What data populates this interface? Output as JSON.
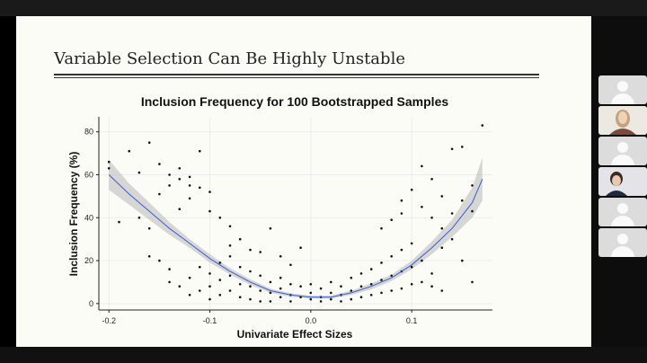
{
  "slide": {
    "title": "Variable Selection Can Be Highly Unstable"
  },
  "participants": [
    {
      "type": "avatar",
      "icon": "person-avatar-icon"
    },
    {
      "type": "camera",
      "icon": "video-feed-icon"
    },
    {
      "type": "avatar",
      "icon": "person-avatar-icon"
    },
    {
      "type": "camera",
      "icon": "video-feed-icon"
    },
    {
      "type": "avatar",
      "icon": "person-avatar-icon"
    },
    {
      "type": "avatar",
      "icon": "person-avatar-icon"
    }
  ],
  "chart_data": {
    "type": "scatter",
    "title": "Inclusion Frequency for 100 Bootstrapped Samples",
    "xlabel": "Univariate Effect Sizes",
    "ylabel": "Inclusion Frequency (%)",
    "xlim": [
      -0.21,
      0.18
    ],
    "ylim": [
      -3,
      87
    ],
    "xticks": [
      -0.2,
      -0.1,
      0.0,
      0.1
    ],
    "yticks": [
      0,
      20,
      40,
      60,
      80
    ],
    "grid": true,
    "legend": "none",
    "point_color": "#111111",
    "fit_color": "#3a5bd9",
    "band_color": "#bdbdbd",
    "fit": {
      "type": "loess",
      "x": [
        -0.2,
        -0.18,
        -0.16,
        -0.14,
        -0.12,
        -0.1,
        -0.08,
        -0.06,
        -0.04,
        -0.02,
        0.0,
        0.02,
        0.04,
        0.06,
        0.08,
        0.1,
        0.12,
        0.14,
        0.16,
        0.17
      ],
      "y": [
        60,
        51,
        43,
        35,
        28,
        21,
        15,
        10,
        6,
        4,
        3,
        3,
        5,
        8,
        12,
        18,
        26,
        35,
        47,
        58
      ],
      "lower": [
        53,
        46,
        39,
        32,
        26,
        19,
        13.5,
        8.7,
        5,
        3.2,
        2.3,
        2.3,
        4,
        6.6,
        10.5,
        16,
        23,
        31,
        40,
        48
      ],
      "upper": [
        67,
        56,
        47,
        38,
        30,
        23,
        16.5,
        11.3,
        7,
        4.8,
        3.7,
        3.7,
        6,
        9.4,
        13.5,
        20,
        29,
        39,
        54,
        68
      ]
    },
    "series": [
      {
        "points": [
          [
            -0.2,
            66
          ],
          [
            -0.2,
            63
          ],
          [
            -0.18,
            71
          ],
          [
            -0.17,
            61
          ],
          [
            -0.16,
            75
          ],
          [
            -0.15,
            65
          ],
          [
            -0.14,
            60
          ],
          [
            -0.14,
            55
          ],
          [
            -0.13,
            63
          ],
          [
            -0.13,
            58
          ],
          [
            -0.12,
            59
          ],
          [
            -0.12,
            55
          ],
          [
            -0.12,
            49
          ],
          [
            -0.11,
            71
          ],
          [
            -0.11,
            54
          ],
          [
            -0.1,
            43
          ],
          [
            -0.1,
            52
          ],
          [
            -0.15,
            51
          ],
          [
            -0.17,
            40
          ],
          [
            -0.16,
            35
          ],
          [
            -0.19,
            38
          ],
          [
            -0.13,
            44
          ],
          [
            -0.09,
            40
          ],
          [
            -0.08,
            36
          ],
          [
            -0.08,
            27
          ],
          [
            -0.07,
            30
          ],
          [
            -0.06,
            25
          ],
          [
            -0.05,
            24
          ],
          [
            -0.04,
            35
          ],
          [
            -0.03,
            22
          ],
          [
            -0.02,
            18
          ],
          [
            -0.01,
            26
          ],
          [
            -0.16,
            22
          ],
          [
            -0.15,
            20
          ],
          [
            -0.14,
            16
          ],
          [
            -0.14,
            10
          ],
          [
            -0.13,
            8
          ],
          [
            -0.12,
            12
          ],
          [
            -0.12,
            4
          ],
          [
            -0.11,
            17
          ],
          [
            -0.11,
            6
          ],
          [
            -0.1,
            14
          ],
          [
            -0.1,
            8
          ],
          [
            -0.1,
            2
          ],
          [
            -0.09,
            19
          ],
          [
            -0.09,
            11
          ],
          [
            -0.09,
            4
          ],
          [
            -0.08,
            22
          ],
          [
            -0.08,
            13
          ],
          [
            -0.08,
            6
          ],
          [
            -0.07,
            17
          ],
          [
            -0.07,
            9
          ],
          [
            -0.07,
            3
          ],
          [
            -0.06,
            15
          ],
          [
            -0.06,
            8
          ],
          [
            -0.06,
            2
          ],
          [
            -0.05,
            13
          ],
          [
            -0.05,
            6
          ],
          [
            -0.05,
            1
          ],
          [
            -0.04,
            10
          ],
          [
            -0.04,
            5
          ],
          [
            -0.04,
            1
          ],
          [
            -0.03,
            12
          ],
          [
            -0.03,
            7
          ],
          [
            -0.03,
            3
          ],
          [
            -0.02,
            9
          ],
          [
            -0.02,
            4
          ],
          [
            -0.02,
            1
          ],
          [
            -0.01,
            8
          ],
          [
            -0.01,
            3
          ],
          [
            0.0,
            9
          ],
          [
            0.0,
            5
          ],
          [
            0.0,
            2
          ],
          [
            0.01,
            7
          ],
          [
            0.01,
            3
          ],
          [
            0.01,
            1
          ],
          [
            0.02,
            10
          ],
          [
            0.02,
            5
          ],
          [
            0.02,
            2
          ],
          [
            0.03,
            8
          ],
          [
            0.03,
            4
          ],
          [
            0.03,
            1
          ],
          [
            0.04,
            12
          ],
          [
            0.04,
            6
          ],
          [
            0.04,
            2
          ],
          [
            0.05,
            14
          ],
          [
            0.05,
            8
          ],
          [
            0.05,
            3
          ],
          [
            0.06,
            16
          ],
          [
            0.06,
            9
          ],
          [
            0.06,
            4
          ],
          [
            0.07,
            19
          ],
          [
            0.07,
            11
          ],
          [
            0.07,
            5
          ],
          [
            0.08,
            22
          ],
          [
            0.08,
            13
          ],
          [
            0.08,
            6
          ],
          [
            0.09,
            25
          ],
          [
            0.09,
            15
          ],
          [
            0.09,
            7
          ],
          [
            0.1,
            28
          ],
          [
            0.1,
            17
          ],
          [
            0.1,
            9
          ],
          [
            0.11,
            20
          ],
          [
            0.11,
            10
          ],
          [
            0.12,
            14
          ],
          [
            0.12,
            8
          ],
          [
            0.13,
            6
          ],
          [
            0.07,
            35
          ],
          [
            0.08,
            39
          ],
          [
            0.09,
            42
          ],
          [
            0.09,
            48
          ],
          [
            0.1,
            53
          ],
          [
            0.11,
            45
          ],
          [
            0.11,
            64
          ],
          [
            0.12,
            58
          ],
          [
            0.12,
            40
          ],
          [
            0.13,
            35
          ],
          [
            0.13,
            26
          ],
          [
            0.14,
            72
          ],
          [
            0.14,
            42
          ],
          [
            0.15,
            73
          ],
          [
            0.15,
            48
          ],
          [
            0.15,
            20
          ],
          [
            0.16,
            55
          ],
          [
            0.16,
            43
          ],
          [
            0.16,
            10
          ],
          [
            0.17,
            83
          ],
          [
            0.14,
            30
          ],
          [
            0.13,
            50
          ]
        ]
      }
    ]
  }
}
